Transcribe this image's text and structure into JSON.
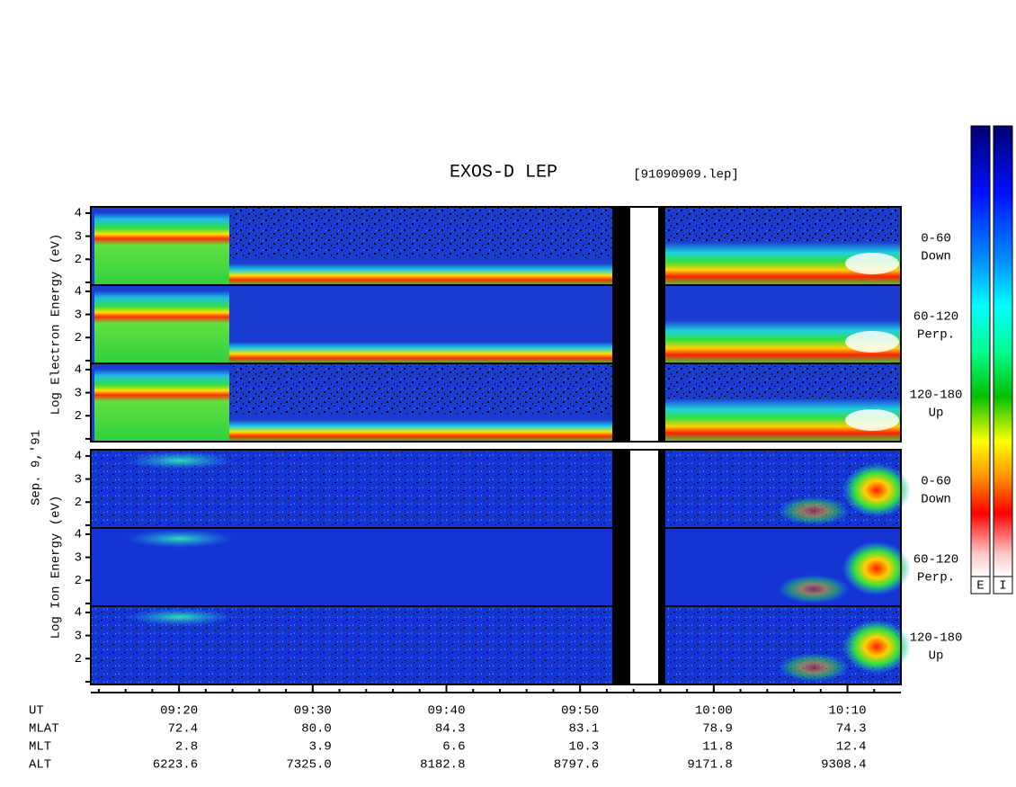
{
  "chart_data": {
    "type": "spectrogram",
    "title": "EXOS-D LEP",
    "file": "[91090909.lep]",
    "date": "Sep. 9,'91",
    "groups": [
      {
        "ylabel": "Log Electron Energy (eV)",
        "panels": [
          {
            "label": [
              "0-60",
              "Down"
            ]
          },
          {
            "label": [
              "60-120",
              "Perp."
            ]
          },
          {
            "label": [
              "120-180",
              "Up"
            ]
          }
        ]
      },
      {
        "ylabel": "Log Ion Energy (eV)",
        "panels": [
          {
            "label": [
              "0-60",
              "Down"
            ]
          },
          {
            "label": [
              "60-120",
              "Perp."
            ]
          },
          {
            "label": [
              "120-180",
              "Up"
            ]
          }
        ]
      }
    ],
    "ylim": [
      0.88,
      4.27
    ],
    "yticks": [
      2,
      3,
      4
    ],
    "minor_yticks": [
      1
    ],
    "xlim": [
      553.4,
      614
    ],
    "xticks": [
      {
        "value": 560,
        "label": "09:20"
      },
      {
        "value": 570,
        "label": "09:30"
      },
      {
        "value": 580,
        "label": "09:40"
      },
      {
        "value": 590,
        "label": "09:50"
      },
      {
        "value": 600,
        "label": "10:00"
      },
      {
        "value": 610,
        "label": "10:10"
      }
    ],
    "minor_xticks": [
      554,
      556,
      558,
      560,
      562,
      564,
      566,
      568,
      570,
      572,
      574,
      576,
      578,
      580,
      582,
      584,
      586,
      588,
      590,
      592,
      594,
      596,
      598,
      600,
      602,
      604,
      606,
      608,
      610,
      612
    ],
    "ephemeris": {
      "label": "UT",
      "rows": [
        {
          "label": "MLAT",
          "values": [
            "72.4",
            "80.0",
            "84.3",
            "83.1",
            "78.9",
            "74.3"
          ]
        },
        {
          "label": "MLT",
          "values": [
            "2.8",
            "3.9",
            "6.6",
            "10.3",
            "11.8",
            "12.4"
          ]
        },
        {
          "label": "ALT",
          "values": [
            "6223.6",
            "7325.0",
            "8182.8",
            "8797.6",
            "9171.8",
            "9308.4"
          ]
        }
      ]
    },
    "colorbars": [
      "E",
      "I"
    ]
  }
}
